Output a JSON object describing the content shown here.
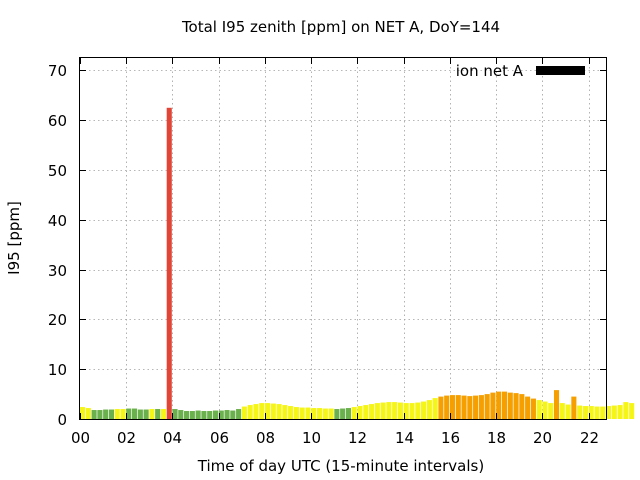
{
  "chart_data": {
    "type": "bar",
    "title": "Total I95 zenith [ppm] on NET A, DoY=144",
    "xlabel": "Time of day UTC (15-minute intervals)",
    "ylabel": "I95 [ppm]",
    "xlim": [
      0,
      22.75
    ],
    "ylim": [
      0,
      72.5
    ],
    "x_ticks": [
      {
        "value": 0,
        "label": "00"
      },
      {
        "value": 2,
        "label": "02"
      },
      {
        "value": 4,
        "label": "04"
      },
      {
        "value": 6,
        "label": "06"
      },
      {
        "value": 8,
        "label": "08"
      },
      {
        "value": 10,
        "label": "10"
      },
      {
        "value": 12,
        "label": "12"
      },
      {
        "value": 14,
        "label": "14"
      },
      {
        "value": 16,
        "label": "16"
      },
      {
        "value": 18,
        "label": "18"
      },
      {
        "value": 20,
        "label": "20"
      },
      {
        "value": 22,
        "label": "22"
      }
    ],
    "y_ticks": [
      0,
      10,
      20,
      30,
      40,
      50,
      60,
      70
    ],
    "grid": true,
    "legend": {
      "position": "top-right",
      "label": "ion net A",
      "color": "#000000"
    },
    "bar_width_hours": 0.22,
    "level_colors": {
      "low": "#6ab04c",
      "moderate": "#f5f518",
      "elevated": "#f5a000",
      "high": "#e04535"
    },
    "series": [
      {
        "interval_hours": 0.25,
        "values": [
          2.4,
          2.2,
          1.8,
          1.8,
          1.9,
          1.9,
          2.0,
          2.0,
          2.1,
          2.1,
          1.9,
          1.9,
          2.0,
          2.0,
          2.0,
          62.5,
          2.0,
          1.8,
          1.6,
          1.6,
          1.7,
          1.6,
          1.6,
          1.7,
          1.7,
          1.8,
          1.7,
          2.0,
          2.5,
          2.8,
          3.0,
          3.2,
          3.2,
          3.1,
          3.0,
          2.8,
          2.6,
          2.4,
          2.3,
          2.3,
          2.2,
          2.2,
          2.1,
          2.1,
          2.0,
          2.1,
          2.2,
          2.4,
          2.6,
          2.8,
          3.0,
          3.2,
          3.3,
          3.4,
          3.4,
          3.3,
          3.2,
          3.2,
          3.3,
          3.5,
          3.8,
          4.2,
          4.5,
          4.7,
          4.8,
          4.8,
          4.7,
          4.6,
          4.7,
          4.8,
          5.0,
          5.3,
          5.5,
          5.5,
          5.3,
          5.2,
          5.0,
          4.5,
          4.1,
          3.8,
          3.5,
          3.2,
          5.8,
          3.2,
          2.9,
          4.5,
          2.7,
          2.6,
          2.6,
          2.5,
          2.5,
          2.6,
          2.7,
          2.8,
          3.4,
          3.2
        ],
        "levels": [
          "moderate",
          "moderate",
          "low",
          "low",
          "low",
          "low",
          "moderate",
          "moderate",
          "low",
          "low",
          "low",
          "low",
          "moderate",
          "low",
          "moderate",
          "high",
          "low",
          "low",
          "low",
          "low",
          "low",
          "low",
          "low",
          "low",
          "low",
          "low",
          "low",
          "low",
          "moderate",
          "moderate",
          "moderate",
          "moderate",
          "moderate",
          "moderate",
          "moderate",
          "moderate",
          "moderate",
          "moderate",
          "moderate",
          "moderate",
          "moderate",
          "moderate",
          "moderate",
          "moderate",
          "low",
          "low",
          "low",
          "moderate",
          "moderate",
          "moderate",
          "moderate",
          "moderate",
          "moderate",
          "moderate",
          "moderate",
          "moderate",
          "moderate",
          "moderate",
          "moderate",
          "moderate",
          "moderate",
          "moderate",
          "elevated",
          "elevated",
          "elevated",
          "elevated",
          "elevated",
          "elevated",
          "elevated",
          "elevated",
          "elevated",
          "elevated",
          "elevated",
          "elevated",
          "elevated",
          "elevated",
          "elevated",
          "elevated",
          "elevated",
          "moderate",
          "moderate",
          "moderate",
          "elevated",
          "moderate",
          "moderate",
          "elevated",
          "moderate",
          "moderate",
          "moderate",
          "moderate",
          "moderate",
          "moderate",
          "moderate",
          "moderate",
          "moderate",
          "moderate"
        ]
      }
    ]
  }
}
